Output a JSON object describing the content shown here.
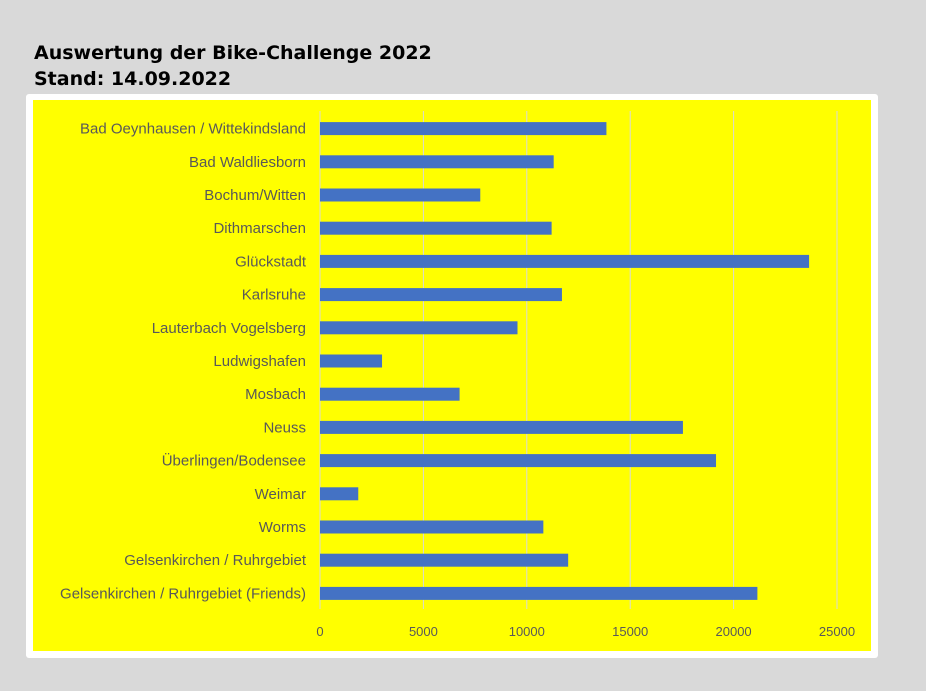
{
  "header": {
    "title": "Auswertung der Bike-Challenge 2022",
    "subtitle": "Stand: 14.09.2022"
  },
  "colors": {
    "bar": "#4472c4",
    "plot_background": "#ffff00",
    "grid": "#d9d9d9",
    "label": "#595959"
  },
  "chart_data": {
    "type": "bar",
    "orientation": "horizontal",
    "title": "Auswertung der Bike-Challenge 2022",
    "subtitle": "Stand: 14.09.2022",
    "categories": [
      "Bad Oeynhausen / Wittekindsland",
      "Bad Waldliesborn",
      "Bochum/Witten",
      "Dithmarschen",
      "Glückstadt",
      "Karlsruhe",
      "Lauterbach Vogelsberg",
      "Ludwigshafen",
      "Mosbach",
      "Neuss",
      "Überlingen/Bodensee",
      "Weimar",
      "Worms",
      "Gelsenkirchen / Ruhrgebiet",
      "Gelsenkirchen / Ruhrgebiet (Friends)"
    ],
    "values": [
      13850,
      11300,
      7750,
      11200,
      23650,
      11700,
      9550,
      3000,
      6750,
      17550,
      19150,
      1850,
      10800,
      12000,
      21150
    ],
    "xlim": [
      0,
      25000
    ],
    "xticks": [
      "0",
      "5000",
      "10000",
      "15000",
      "20000",
      "25000"
    ],
    "grid": "vertical",
    "legend": "none",
    "xlabel": "",
    "ylabel": ""
  }
}
